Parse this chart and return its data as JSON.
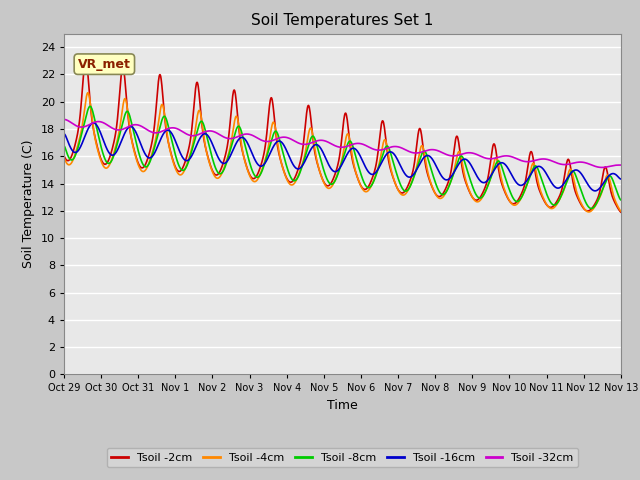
{
  "title": "Soil Temperatures Set 1",
  "xlabel": "Time",
  "ylabel": "Soil Temperature (C)",
  "ylim": [
    0,
    25
  ],
  "yticks": [
    0,
    2,
    4,
    6,
    8,
    10,
    12,
    14,
    16,
    18,
    20,
    22,
    24
  ],
  "xtick_labels": [
    "Oct 29",
    "Oct 30",
    "Oct 31",
    "Nov 1",
    "Nov 2",
    "Nov 3",
    "Nov 4",
    "Nov 5",
    "Nov 6",
    "Nov 7",
    "Nov 8",
    "Nov 9",
    "Nov 10",
    "Nov 11",
    "Nov 12",
    "Nov 13"
  ],
  "colors": {
    "Tsoil -2cm": "#cc0000",
    "Tsoil -4cm": "#ff8800",
    "Tsoil -8cm": "#00cc00",
    "Tsoil -16cm": "#0000cc",
    "Tsoil -32cm": "#cc00cc"
  },
  "annotation_text": "VR_met",
  "background_color": "#e0e0e0",
  "plot_bg_color": "#e8e8e8",
  "grid_color": "#ffffff",
  "num_days": 15,
  "line_width": 1.2
}
